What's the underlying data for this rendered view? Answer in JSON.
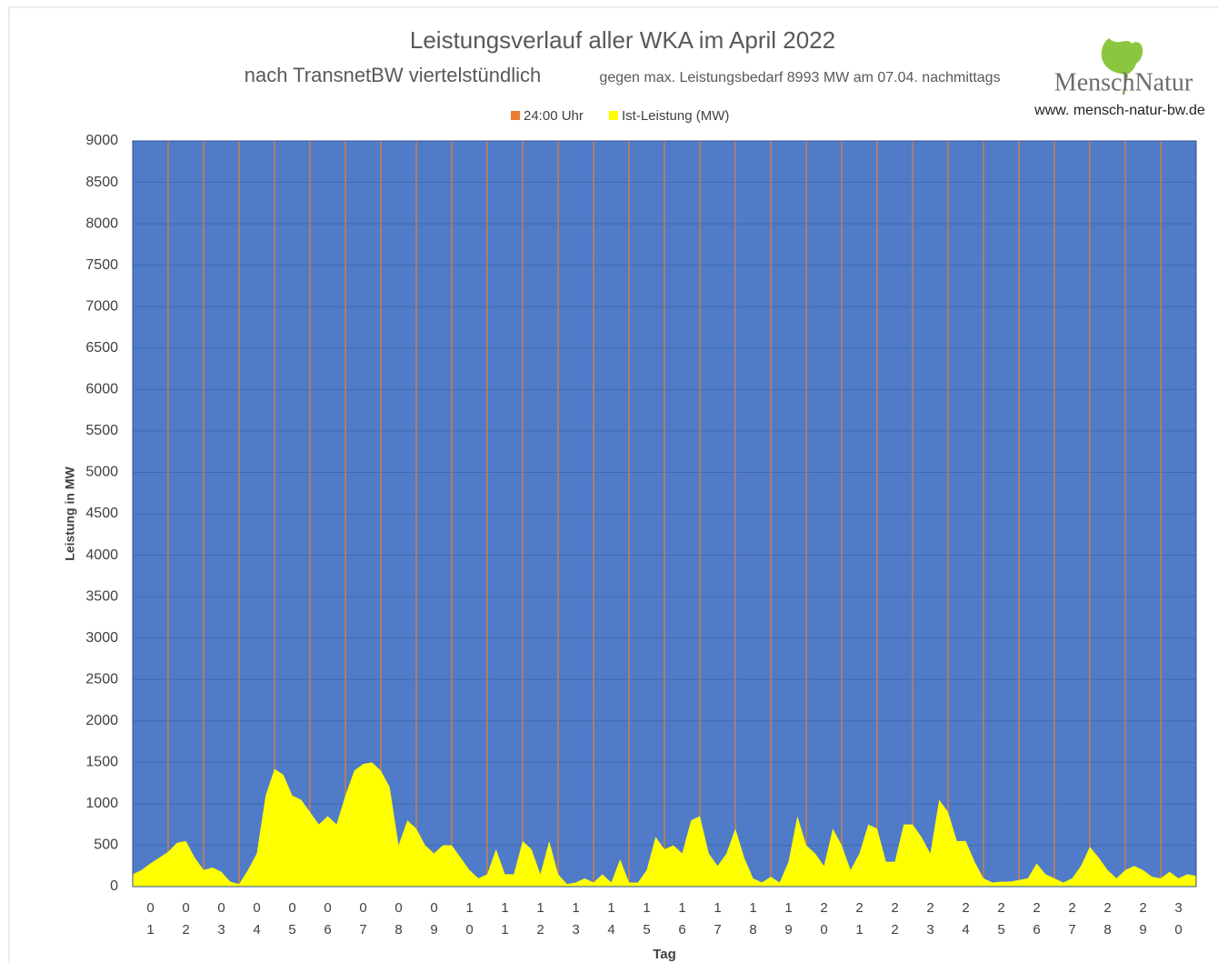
{
  "chart_data": {
    "type": "area",
    "title": "Leistungsverlauf aller WKA im April 2022",
    "subtitle": "nach TransnetBW viertelstündlich",
    "subtitle_note": "gegen max. Leistungsbedarf 8993 MW am 07.04. nachmittags",
    "logo": "MenschNatur",
    "website": "www. mensch-natur-bw.de",
    "y_label": "Leistung in MW",
    "x_label": "Tag",
    "categories": [
      "01",
      "02",
      "03",
      "04",
      "05",
      "06",
      "07",
      "08",
      "09",
      "10",
      "11",
      "12",
      "13",
      "14",
      "15",
      "16",
      "17",
      "18",
      "19",
      "20",
      "21",
      "22",
      "23",
      "24",
      "25",
      "26",
      "27",
      "28",
      "29",
      "30"
    ],
    "xlim": [
      0,
      30
    ],
    "ylim": [
      0,
      9000
    ],
    "yticks": [
      0,
      500,
      1000,
      1500,
      2000,
      2500,
      3000,
      3500,
      4000,
      4500,
      5000,
      5500,
      6000,
      6500,
      7000,
      7500,
      8000,
      8500,
      9000
    ],
    "grid": true,
    "background": "#4f7bc8",
    "series": [
      {
        "name": "Ist-Leistung (MW)",
        "color": "#ffff00",
        "x": [
          0,
          0.25,
          0.5,
          0.75,
          1,
          1.25,
          1.5,
          1.75,
          2,
          2.25,
          2.5,
          2.75,
          3,
          3.25,
          3.5,
          3.75,
          4,
          4.25,
          4.5,
          4.75,
          5,
          5.25,
          5.5,
          5.75,
          6,
          6.25,
          6.5,
          6.75,
          7,
          7.25,
          7.5,
          7.75,
          8,
          8.25,
          8.5,
          8.75,
          9,
          9.25,
          9.5,
          9.75,
          10,
          10.25,
          10.5,
          10.75,
          11,
          11.25,
          11.5,
          11.75,
          12,
          12.25,
          12.5,
          12.75,
          13,
          13.25,
          13.5,
          13.75,
          14,
          14.25,
          14.5,
          14.75,
          15,
          15.25,
          15.5,
          15.75,
          16,
          16.25,
          16.5,
          16.75,
          17,
          17.25,
          17.5,
          17.75,
          18,
          18.25,
          18.5,
          18.75,
          19,
          19.25,
          19.5,
          19.75,
          20,
          20.25,
          20.5,
          20.75,
          21,
          21.25,
          21.5,
          21.75,
          22,
          22.25,
          22.5,
          22.75,
          23,
          23.25,
          23.5,
          23.75,
          24,
          24.25,
          24.5,
          24.75,
          25,
          25.25,
          25.5,
          25.75,
          26,
          26.25,
          26.5,
          26.75,
          27,
          27.25,
          27.5,
          27.75,
          28,
          28.25,
          28.5,
          28.75,
          29,
          29.25,
          29.5,
          29.75,
          30
        ],
        "values": [
          150,
          200,
          280,
          350,
          420,
          530,
          550,
          350,
          200,
          230,
          180,
          60,
          30,
          200,
          400,
          1100,
          1420,
          1350,
          1100,
          1050,
          900,
          750,
          850,
          750,
          1100,
          1400,
          1480,
          1500,
          1400,
          1200,
          500,
          800,
          700,
          500,
          400,
          500,
          500,
          350,
          200,
          100,
          150,
          450,
          150,
          150,
          550,
          450,
          150,
          550,
          150,
          30,
          50,
          100,
          50,
          150,
          50,
          330,
          50,
          50,
          200,
          600,
          450,
          500,
          400,
          800,
          850,
          400,
          250,
          400,
          700,
          350,
          100,
          50,
          120,
          50,
          300,
          850,
          500,
          400,
          250,
          700,
          500,
          200,
          400,
          750,
          700,
          300,
          300,
          750,
          750,
          600,
          400,
          1050,
          900,
          550,
          550,
          300,
          100,
          50,
          60,
          60,
          80,
          100,
          280,
          150,
          100,
          50,
          100,
          250,
          480,
          350,
          200,
          100,
          200,
          250,
          200,
          120,
          100,
          180,
          100,
          150,
          130
        ]
      },
      {
        "name": "24:00 Uhr",
        "color": "#ed7d31",
        "x": [
          1,
          2,
          3,
          4,
          5,
          6,
          7,
          8,
          9,
          10,
          11,
          12,
          13,
          14,
          15,
          16,
          17,
          18,
          19,
          20,
          21,
          22,
          23,
          24,
          25,
          26,
          27,
          28,
          29
        ],
        "values": [
          9000,
          9000,
          9000,
          9000,
          9000,
          9000,
          9000,
          9000,
          9000,
          9000,
          9000,
          9000,
          9000,
          9000,
          9000,
          9000,
          9000,
          9000,
          9000,
          9000,
          9000,
          9000,
          9000,
          9000,
          9000,
          9000,
          9000,
          9000,
          9000
        ]
      }
    ]
  }
}
